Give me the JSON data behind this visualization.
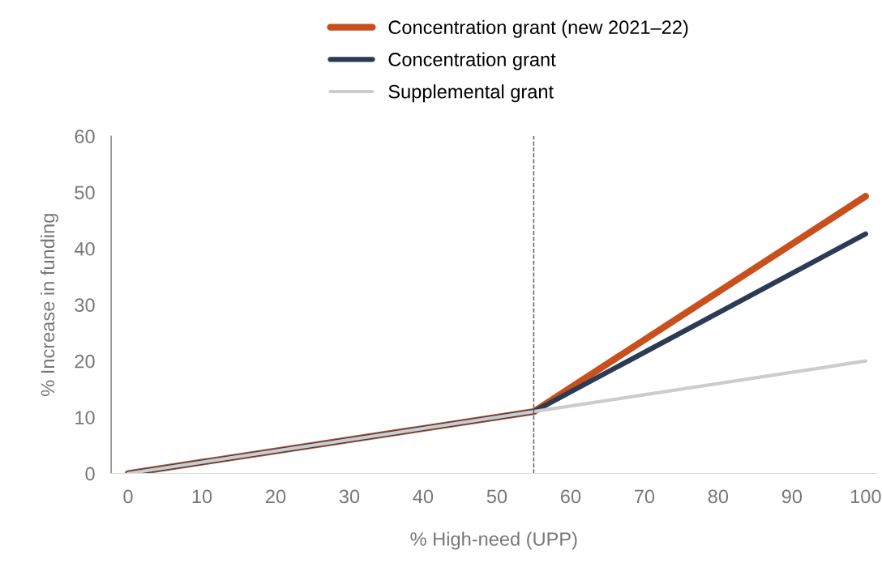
{
  "chart_data": {
    "type": "line",
    "xlabel": "% High-need (UPP)",
    "ylabel": "% Increase in funding",
    "series": [
      {
        "name": "Concentration grant (new 2021–22)",
        "color": "#c9501c",
        "x": [
          0,
          55,
          100
        ],
        "values": [
          0,
          11,
          49.3
        ]
      },
      {
        "name": "Concentration grant",
        "color": "#2b3a55",
        "x": [
          0,
          55,
          100
        ],
        "values": [
          0,
          11,
          42.6
        ]
      },
      {
        "name": "Supplemental grant",
        "color": "#cccccc",
        "x": [
          0,
          55,
          100
        ],
        "values": [
          0,
          11,
          20
        ]
      }
    ],
    "xlim": [
      -2.3,
      101.5
    ],
    "xticks": [
      0,
      10,
      20,
      30,
      40,
      50,
      60,
      70,
      80,
      90,
      100
    ],
    "ylim": [
      0,
      60
    ],
    "yticks": [
      0,
      10,
      20,
      30,
      40,
      50,
      60
    ],
    "ref_lines": [
      {
        "axis": "x",
        "value": 55,
        "color": "#555555",
        "line_style": "dashed"
      }
    ],
    "grid": false,
    "legend": "top",
    "marker": "none",
    "line_style": "solid"
  }
}
